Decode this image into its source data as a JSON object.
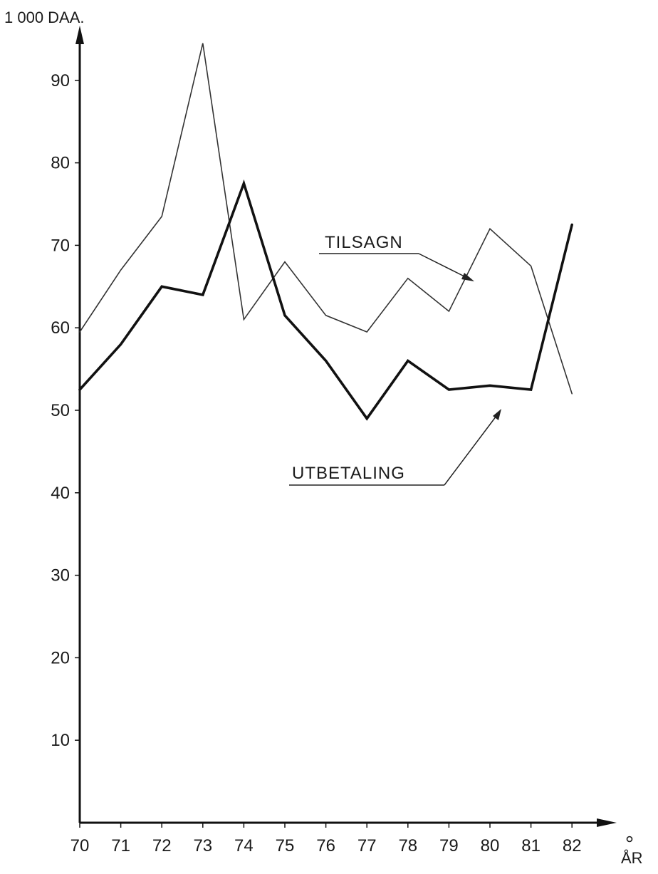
{
  "chart_data": {
    "type": "line",
    "ylabel": "1 000 DAA.",
    "xlabel": "ÅR",
    "x": [
      "70",
      "71",
      "72",
      "73",
      "74",
      "75",
      "76",
      "77",
      "78",
      "79",
      "80",
      "81",
      "82"
    ],
    "yticks": [
      "10",
      "20",
      "30",
      "40",
      "50",
      "60",
      "70",
      "80",
      "90"
    ],
    "xlim": [
      70,
      82
    ],
    "ylim": [
      0,
      100
    ],
    "grid": false,
    "legend": "inline labels",
    "series": [
      {
        "name": "TILSAGN",
        "values": [
          59.5,
          67,
          73.5,
          94.5,
          61,
          68,
          61.5,
          59.5,
          66,
          62,
          72,
          67.5,
          52
        ],
        "color": "#333333"
      },
      {
        "name": "UTBETALING",
        "values": [
          52.5,
          58,
          65,
          64,
          77.5,
          61.5,
          56,
          49,
          56,
          52.5,
          53,
          52.5,
          72.5
        ],
        "color": "#111111"
      }
    ]
  }
}
